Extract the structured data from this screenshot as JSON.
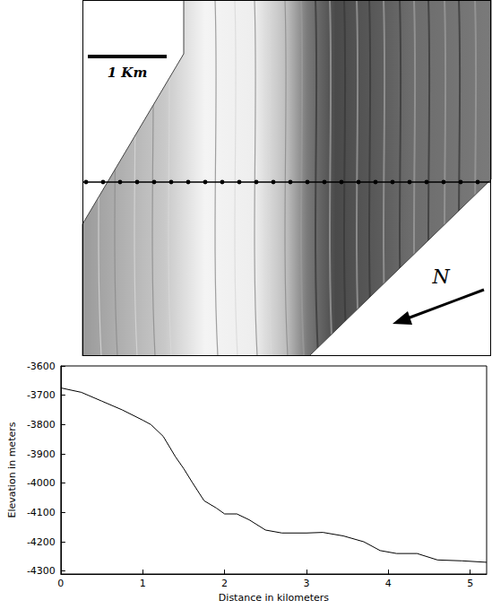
{
  "chart_data": {
    "type": "line",
    "x_label": "Distance in kilometers",
    "y_label": "Elevation in meters",
    "color": "#000000",
    "x": [
      0,
      0.25,
      0.5,
      0.75,
      1.0,
      1.1,
      1.25,
      1.4,
      1.5,
      1.6,
      1.75,
      1.9,
      2.0,
      2.15,
      2.3,
      2.5,
      2.7,
      3.0,
      3.2,
      3.45,
      3.7,
      3.9,
      4.1,
      4.35,
      4.6,
      4.9,
      5.2
    ],
    "values": [
      -3675,
      -3690,
      -3720,
      -3750,
      -3785,
      -3800,
      -3840,
      -3910,
      -3950,
      -3995,
      -4060,
      -4085,
      -4105,
      -4105,
      -4125,
      -4160,
      -4170,
      -4170,
      -4168,
      -4180,
      -4200,
      -4230,
      -4240,
      -4240,
      -4262,
      -4265,
      -4270
    ],
    "xlim": [
      0,
      5.2
    ],
    "xticks": [
      0,
      1,
      2,
      3,
      4,
      5
    ],
    "ylim": [
      -4310,
      -3600
    ],
    "yticks": [
      -4300,
      -4200,
      -4100,
      -4000,
      -3900,
      -3800,
      -3700,
      -3600
    ],
    "grid": false
  },
  "image": {
    "scale_bar": "1 Km",
    "north_label": "N"
  }
}
